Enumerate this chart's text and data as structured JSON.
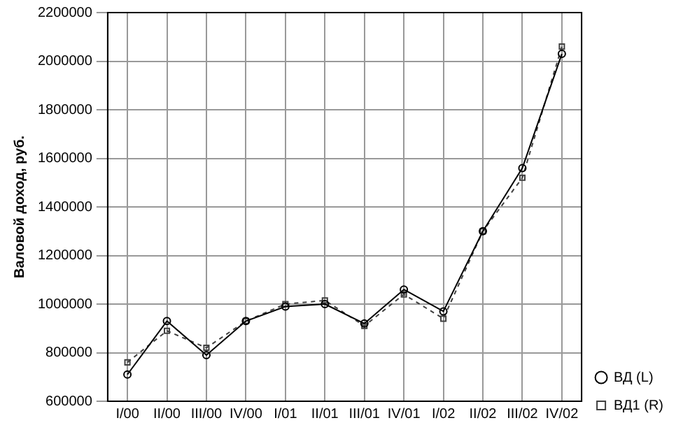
{
  "chart_data": {
    "type": "line",
    "ylabel": "Валовой доход, руб.",
    "categories": [
      "I/00",
      "II/00",
      "III/00",
      "IV/00",
      "I/01",
      "II/01",
      "III/01",
      "IV/01",
      "I/02",
      "II/02",
      "III/02",
      "IV/02"
    ],
    "series": [
      {
        "name": "ВД (L)",
        "color": "#000000",
        "marker": "circle",
        "line_style": "solid",
        "values": [
          710000,
          930000,
          790000,
          930000,
          990000,
          1000000,
          920000,
          1060000,
          970000,
          1300000,
          1560000,
          2030000
        ]
      },
      {
        "name": "ВД1 (R)",
        "color": "#404040",
        "marker": "square",
        "line_style": "dashed",
        "values": [
          760000,
          890000,
          820000,
          930000,
          1000000,
          1015000,
          910000,
          1040000,
          940000,
          1300000,
          1520000,
          2060000
        ]
      }
    ],
    "ylim": [
      600000,
      2200000
    ],
    "yticks": [
      600000,
      800000,
      1000000,
      1200000,
      1400000,
      1600000,
      1800000,
      2000000,
      2200000
    ],
    "grid": true,
    "legend": "bottom right"
  }
}
